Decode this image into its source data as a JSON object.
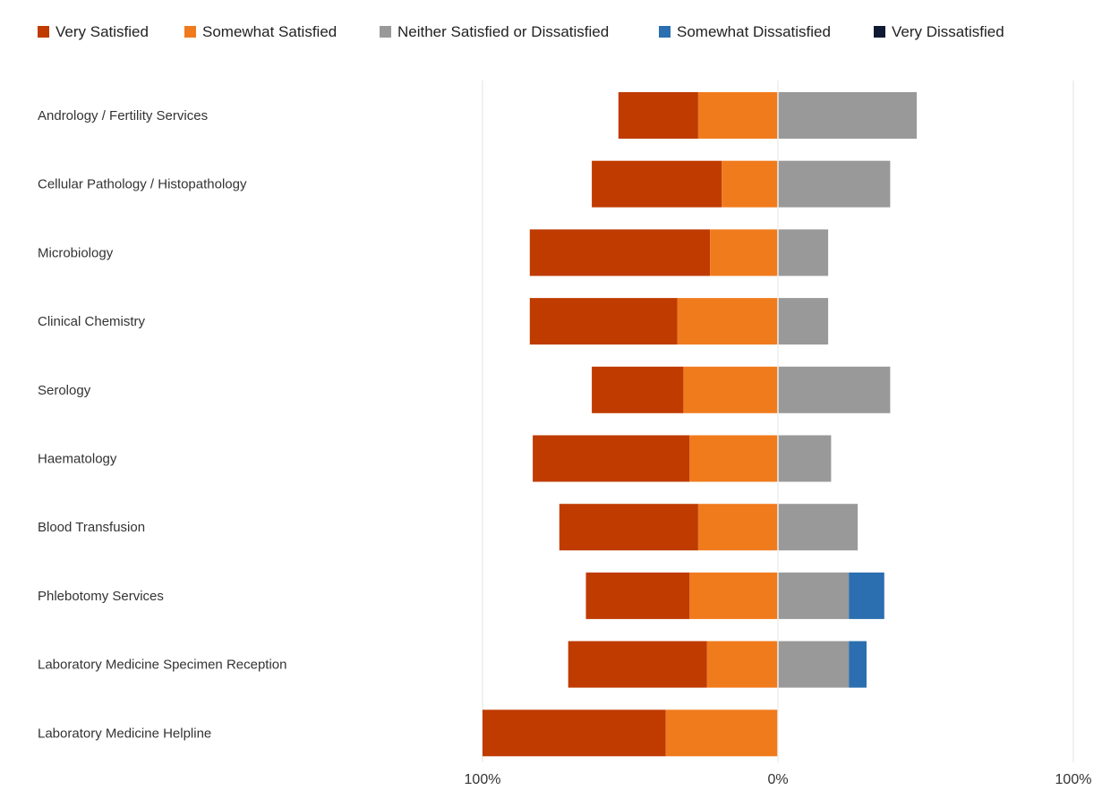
{
  "chart_data": {
    "type": "bar",
    "orientation": "horizontal",
    "stacked": "diverging",
    "title": "",
    "xlabel": "",
    "ylabel": "",
    "xlim": [
      -100,
      100
    ],
    "x_ticks": [
      {
        "value": -100,
        "label": "100%"
      },
      {
        "value": 0,
        "label": "0%"
      },
      {
        "value": 100,
        "label": "100%"
      }
    ],
    "grid": true,
    "legend_position": "top",
    "categories": [
      "Andrology / Fertility Services",
      "Cellular Pathology / Histopathology",
      "Microbiology",
      "Clinical Chemistry",
      "Serology",
      "Haematology",
      "Blood Transfusion",
      "Phlebotomy Services",
      "Laboratory Medicine Specimen Reception",
      "Laboratory Medicine Helpline"
    ],
    "series": [
      {
        "name": "Very Satisfied",
        "color": "#bf3b00",
        "values": [
          27,
          44,
          61,
          50,
          31,
          53,
          47,
          35,
          47,
          62
        ]
      },
      {
        "name": "Somewhat Satisfied",
        "color": "#f07b1d",
        "values": [
          27,
          19,
          23,
          34,
          32,
          30,
          27,
          30,
          24,
          38
        ]
      },
      {
        "name": "Neither Satisfied or Dissatisfied",
        "color": "#999999",
        "values": [
          47,
          38,
          17,
          17,
          38,
          18,
          27,
          24,
          24,
          0
        ]
      },
      {
        "name": "Somewhat Dissatisfied",
        "color": "#2b6fb0",
        "values": [
          0,
          0,
          0,
          0,
          0,
          0,
          0,
          12,
          6,
          0
        ]
      },
      {
        "name": "Very Dissatisfied",
        "color": "#111a33",
        "values": [
          0,
          0,
          0,
          0,
          0,
          0,
          0,
          0,
          0,
          0
        ]
      }
    ]
  }
}
